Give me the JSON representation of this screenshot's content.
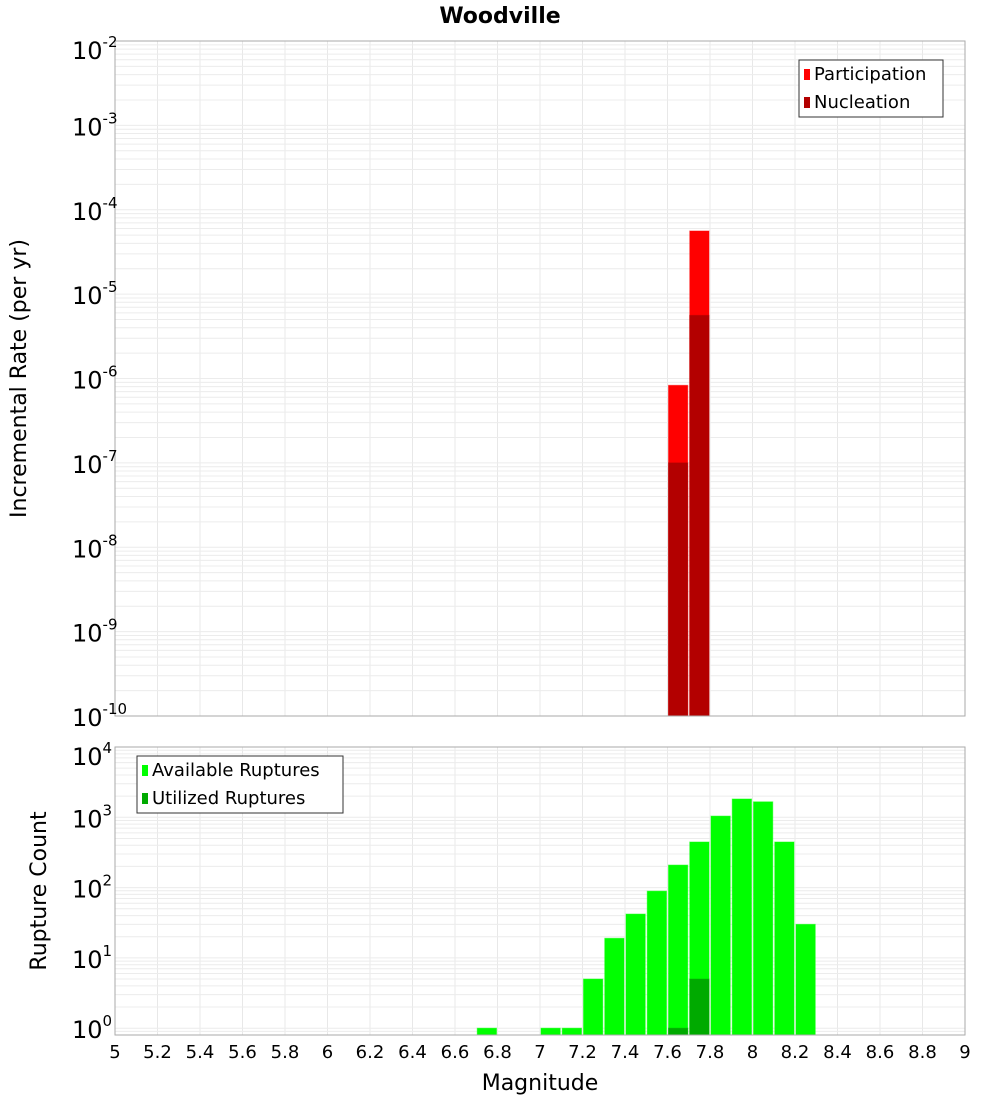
{
  "chart_data": [
    {
      "type": "bar",
      "title": "Woodville",
      "xlabel": "",
      "ylabel": "Incremental Rate (per yr)",
      "yscale": "log",
      "ylim": [
        1e-10,
        0.01
      ],
      "xlim": [
        5,
        9
      ],
      "bin_width": 0.1,
      "grid": true,
      "ytick_exponents": [
        "-2",
        "-3",
        "-4",
        "-5",
        "-6",
        "-7",
        "-8",
        "-9",
        "-10"
      ],
      "legend": {
        "placement": "top-right",
        "entries": [
          {
            "label": "Participation",
            "color": "#ff0000"
          },
          {
            "label": "Nucleation",
            "color": "#b30000"
          }
        ]
      },
      "series": [
        {
          "name": "Participation",
          "color": "#ff0000",
          "x": [
            7.65,
            7.75
          ],
          "values": [
            8.3e-07,
            5.6e-05
          ]
        },
        {
          "name": "Nucleation",
          "color": "#b30000",
          "x": [
            7.65,
            7.75
          ],
          "values": [
            1e-07,
            5.6e-06
          ]
        }
      ]
    },
    {
      "type": "bar",
      "xlabel": "Magnitude",
      "ylabel": "Rupture Count",
      "yscale": "log",
      "ylim": [
        0.8,
        10000.0
      ],
      "xlim": [
        5,
        9
      ],
      "bin_width": 0.1,
      "grid": true,
      "ytick_exponents": [
        "4",
        "3",
        "2",
        "1",
        "0"
      ],
      "xticks": [
        "5",
        "5.2",
        "5.4",
        "5.6",
        "5.8",
        "6",
        "6.2",
        "6.4",
        "6.6",
        "6.8",
        "7",
        "7.2",
        "7.4",
        "7.6",
        "7.8",
        "8",
        "8.2",
        "8.4",
        "8.6",
        "8.8",
        "9"
      ],
      "legend": {
        "placement": "top-left",
        "entries": [
          {
            "label": "Available Ruptures",
            "color": "#00ff00"
          },
          {
            "label": "Utilized Ruptures",
            "color": "#00aa00"
          }
        ]
      },
      "series": [
        {
          "name": "Available Ruptures",
          "color": "#00ff00",
          "x": [
            6.75,
            7.05,
            7.15,
            7.25,
            7.35,
            7.45,
            7.55,
            7.65,
            7.75,
            7.85,
            7.95,
            8.05,
            8.15,
            8.25
          ],
          "values": [
            1,
            1,
            1,
            5,
            19,
            42,
            89,
            209,
            445,
            1040,
            1820,
            1660,
            445,
            30
          ]
        },
        {
          "name": "Utilized Ruptures",
          "color": "#00aa00",
          "x": [
            7.65,
            7.75
          ],
          "values": [
            1,
            5
          ]
        }
      ]
    }
  ]
}
